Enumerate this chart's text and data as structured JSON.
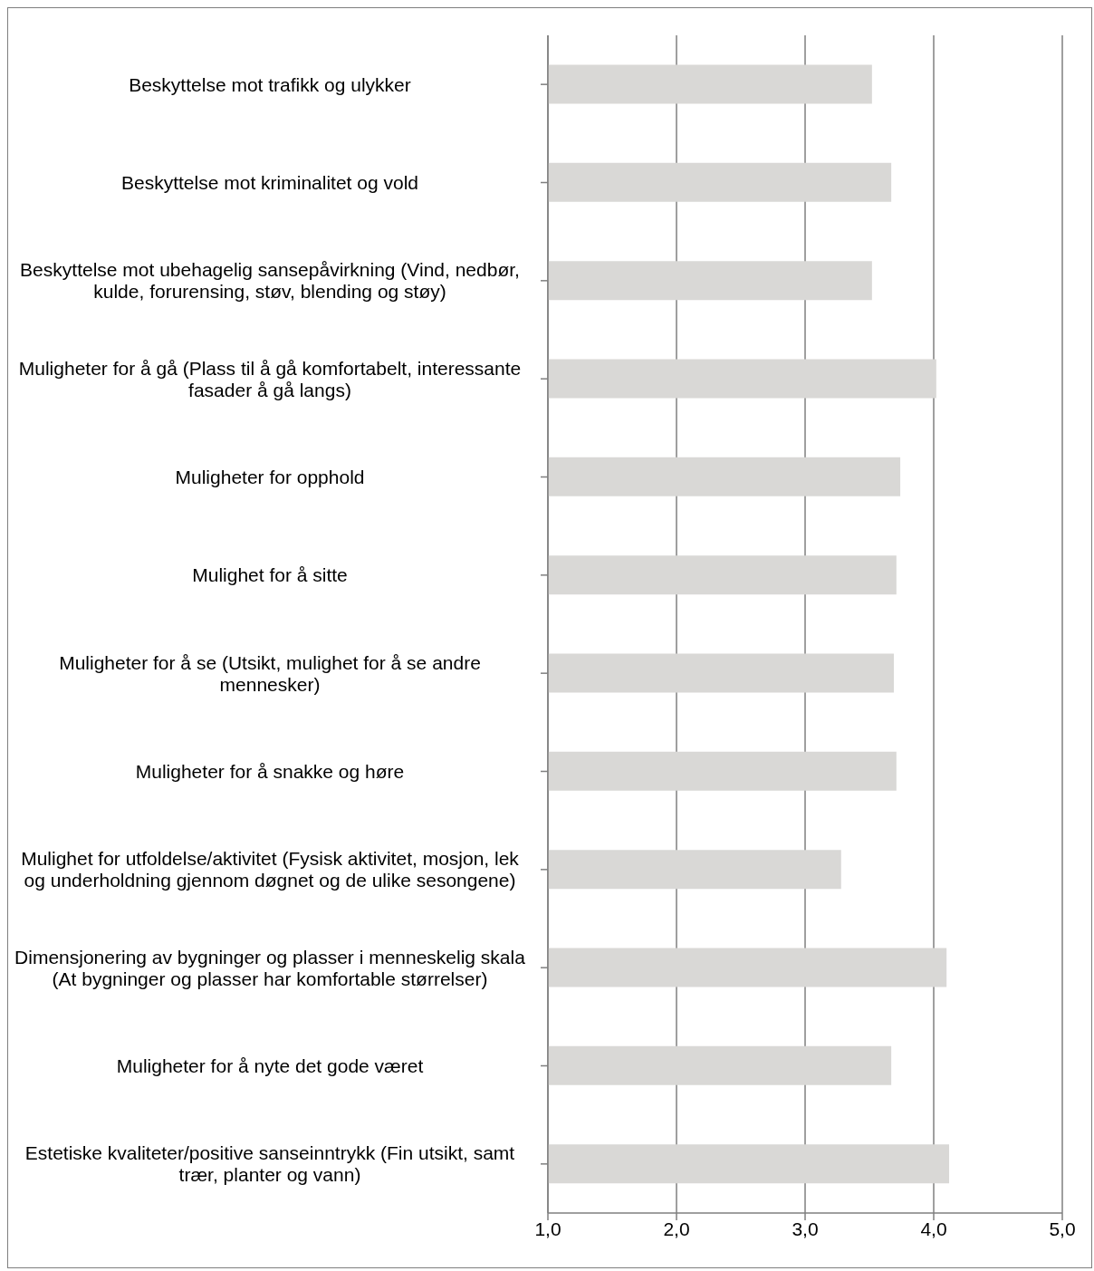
{
  "chart_data": {
    "type": "bar",
    "orientation": "horizontal",
    "categories": [
      "Beskyttelse mot trafikk og ulykker",
      "Beskyttelse mot kriminalitet og vold",
      "Beskyttelse mot ubehagelig sansepåvirkning (Vind, nedbør, kulde, forurensing, støv, blending og støy)",
      "Muligheter for å gå (Plass til å gå komfortabelt, interessante fasader å gå langs)",
      "Muligheter for opphold",
      "Mulighet for å sitte",
      "Muligheter for å se (Utsikt, mulighet for å se andre mennesker)",
      "Muligheter for å snakke og høre",
      "Mulighet for utfoldelse/aktivitet (Fysisk aktivitet, mosjon, lek og underholdning gjennom døgnet og de ulike sesongene)",
      "Dimensjonering av bygninger og plasser i menneskelig skala (At bygninger og plasser har komfortable størrelser)",
      "Muligheter for å nyte det gode været",
      "Estetiske kvaliteter/positive sanseinntrykk (Fin utsikt, samt trær, planter og vann)"
    ],
    "values": [
      3.52,
      3.67,
      3.52,
      4.02,
      3.74,
      3.71,
      3.69,
      3.71,
      3.28,
      4.1,
      3.67,
      4.12
    ],
    "color": "#d9d8d6",
    "xlim": [
      1,
      5
    ],
    "xticks": [
      {
        "value": 1,
        "label": "1,0"
      },
      {
        "value": 2,
        "label": "2,0"
      },
      {
        "value": 3,
        "label": "3,0"
      },
      {
        "value": 4,
        "label": "4,0"
      },
      {
        "value": 5,
        "label": "5,0"
      }
    ],
    "grid": "x"
  }
}
